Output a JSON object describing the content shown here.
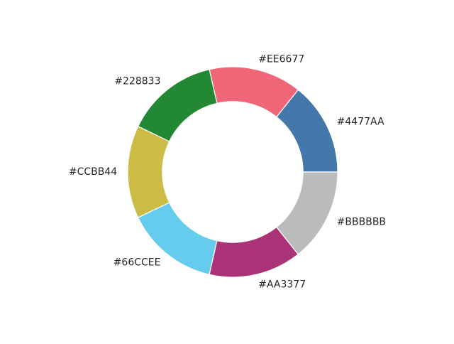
{
  "chart_data": {
    "type": "pie",
    "variant": "donut",
    "title": "",
    "start_angle_deg": 0,
    "direction": "counterclockwise",
    "hole_fraction": 0.67,
    "slices": [
      {
        "label": "#4477AA",
        "value": 1,
        "color": "#4477AA"
      },
      {
        "label": "#EE6677",
        "value": 1,
        "color": "#EE6677"
      },
      {
        "label": "#228833",
        "value": 1,
        "color": "#228833"
      },
      {
        "label": "#CCBB44",
        "value": 1,
        "color": "#CCBB44"
      },
      {
        "label": "#66CCEE",
        "value": 1,
        "color": "#66CCEE"
      },
      {
        "label": "#AA3377",
        "value": 1,
        "color": "#AA3377"
      },
      {
        "label": "#BBBBBB",
        "value": 1,
        "color": "#BBBBBB"
      }
    ]
  }
}
